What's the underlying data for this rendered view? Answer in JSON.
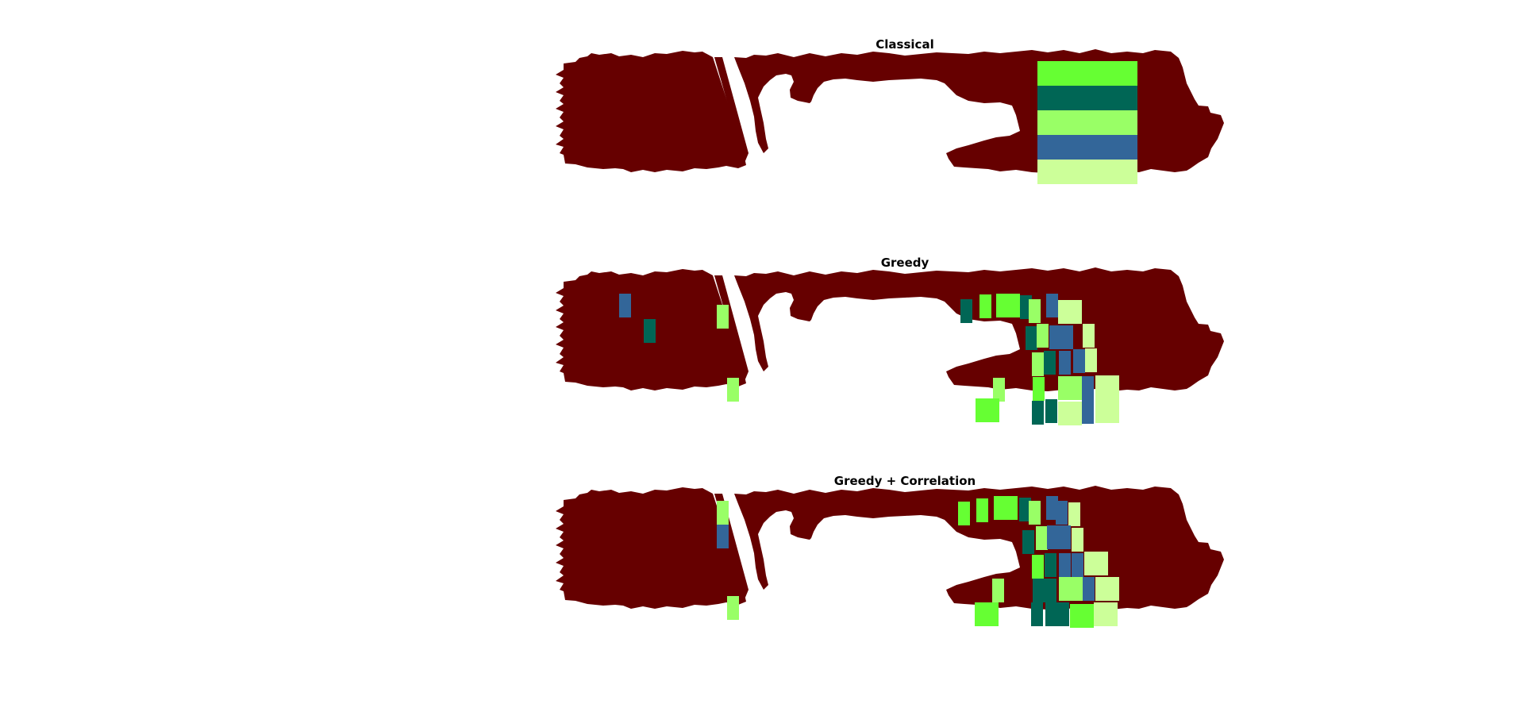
{
  "colors": {
    "field": "#660000",
    "bright_green": "#66ff33",
    "teal": "#006655",
    "light_green": "#99ff66",
    "steel_blue": "#336699",
    "pale_green": "#ccff99"
  },
  "panels": [
    {
      "title": "Classical",
      "wells": [
        {
          "x": 607,
          "y": 32,
          "w": 126,
          "h": 31,
          "color": "bright_green"
        },
        {
          "x": 607,
          "y": 63,
          "w": 126,
          "h": 31,
          "color": "teal"
        },
        {
          "x": 607,
          "y": 94,
          "w": 126,
          "h": 31,
          "color": "light_green"
        },
        {
          "x": 607,
          "y": 125,
          "w": 126,
          "h": 31,
          "color": "steel_blue"
        },
        {
          "x": 607,
          "y": 156,
          "w": 126,
          "h": 31,
          "color": "pale_green"
        }
      ]
    },
    {
      "title": "Greedy",
      "wells": [
        {
          "x": 80,
          "y": 50,
          "w": 15,
          "h": 30,
          "color": "steel_blue"
        },
        {
          "x": 111,
          "y": 82,
          "w": 15,
          "h": 30,
          "color": "teal"
        },
        {
          "x": 203,
          "y": 64,
          "w": 15,
          "h": 30,
          "color": "light_green"
        },
        {
          "x": 216,
          "y": 156,
          "w": 15,
          "h": 30,
          "color": "light_green"
        },
        {
          "x": 510,
          "y": 57,
          "w": 15,
          "h": 30,
          "color": "teal"
        },
        {
          "x": 534,
          "y": 51,
          "w": 15,
          "h": 30,
          "color": "bright_green"
        },
        {
          "x": 555,
          "y": 50,
          "w": 30,
          "h": 30,
          "color": "bright_green"
        },
        {
          "x": 585,
          "y": 52,
          "w": 15,
          "h": 30,
          "color": "teal"
        },
        {
          "x": 596,
          "y": 57,
          "w": 15,
          "h": 30,
          "color": "light_green"
        },
        {
          "x": 618,
          "y": 50,
          "w": 15,
          "h": 30,
          "color": "steel_blue"
        },
        {
          "x": 633,
          "y": 58,
          "w": 30,
          "h": 30,
          "color": "pale_green"
        },
        {
          "x": 592,
          "y": 91,
          "w": 15,
          "h": 30,
          "color": "teal"
        },
        {
          "x": 606,
          "y": 88,
          "w": 15,
          "h": 30,
          "color": "light_green"
        },
        {
          "x": 622,
          "y": 90,
          "w": 30,
          "h": 30,
          "color": "steel_blue"
        },
        {
          "x": 664,
          "y": 88,
          "w": 15,
          "h": 30,
          "color": "pale_green"
        },
        {
          "x": 600,
          "y": 124,
          "w": 15,
          "h": 30,
          "color": "light_green"
        },
        {
          "x": 615,
          "y": 122,
          "w": 15,
          "h": 30,
          "color": "teal"
        },
        {
          "x": 634,
          "y": 122,
          "w": 15,
          "h": 30,
          "color": "steel_blue"
        },
        {
          "x": 652,
          "y": 120,
          "w": 15,
          "h": 30,
          "color": "steel_blue"
        },
        {
          "x": 667,
          "y": 119,
          "w": 15,
          "h": 30,
          "color": "pale_green"
        },
        {
          "x": 551,
          "y": 156,
          "w": 15,
          "h": 30,
          "color": "light_green"
        },
        {
          "x": 529,
          "y": 182,
          "w": 30,
          "h": 30,
          "color": "bright_green"
        },
        {
          "x": 601,
          "y": 155,
          "w": 15,
          "h": 30,
          "color": "bright_green"
        },
        {
          "x": 600,
          "y": 185,
          "w": 15,
          "h": 30,
          "color": "teal"
        },
        {
          "x": 617,
          "y": 183,
          "w": 15,
          "h": 30,
          "color": "teal"
        },
        {
          "x": 633,
          "y": 154,
          "w": 30,
          "h": 30,
          "color": "light_green"
        },
        {
          "x": 633,
          "y": 186,
          "w": 30,
          "h": 30,
          "color": "pale_green"
        },
        {
          "x": 663,
          "y": 154,
          "w": 15,
          "h": 30,
          "color": "steel_blue"
        },
        {
          "x": 663,
          "y": 184,
          "w": 15,
          "h": 30,
          "color": "steel_blue"
        },
        {
          "x": 680,
          "y": 153,
          "w": 30,
          "h": 30,
          "color": "pale_green"
        },
        {
          "x": 680,
          "y": 183,
          "w": 30,
          "h": 30,
          "color": "pale_green"
        }
      ]
    },
    {
      "title": "Greedy + Correlation",
      "wells": [
        {
          "x": 203,
          "y": 36,
          "w": 15,
          "h": 30,
          "color": "light_green"
        },
        {
          "x": 203,
          "y": 66,
          "w": 15,
          "h": 30,
          "color": "steel_blue"
        },
        {
          "x": 216,
          "y": 156,
          "w": 15,
          "h": 30,
          "color": "light_green"
        },
        {
          "x": 507,
          "y": 37,
          "w": 15,
          "h": 30,
          "color": "bright_green"
        },
        {
          "x": 530,
          "y": 33,
          "w": 15,
          "h": 30,
          "color": "bright_green"
        },
        {
          "x": 552,
          "y": 30,
          "w": 30,
          "h": 30,
          "color": "bright_green"
        },
        {
          "x": 584,
          "y": 32,
          "w": 15,
          "h": 30,
          "color": "teal"
        },
        {
          "x": 596,
          "y": 36,
          "w": 15,
          "h": 30,
          "color": "light_green"
        },
        {
          "x": 618,
          "y": 30,
          "w": 15,
          "h": 30,
          "color": "steel_blue"
        },
        {
          "x": 630,
          "y": 36,
          "w": 15,
          "h": 30,
          "color": "steel_blue"
        },
        {
          "x": 646,
          "y": 38,
          "w": 15,
          "h": 30,
          "color": "pale_green"
        },
        {
          "x": 588,
          "y": 73,
          "w": 15,
          "h": 30,
          "color": "teal"
        },
        {
          "x": 605,
          "y": 68,
          "w": 15,
          "h": 30,
          "color": "light_green"
        },
        {
          "x": 619,
          "y": 67,
          "w": 30,
          "h": 30,
          "color": "steel_blue"
        },
        {
          "x": 650,
          "y": 70,
          "w": 15,
          "h": 30,
          "color": "pale_green"
        },
        {
          "x": 600,
          "y": 104,
          "w": 15,
          "h": 30,
          "color": "bright_green"
        },
        {
          "x": 616,
          "y": 102,
          "w": 15,
          "h": 30,
          "color": "teal"
        },
        {
          "x": 634,
          "y": 102,
          "w": 15,
          "h": 30,
          "color": "steel_blue"
        },
        {
          "x": 650,
          "y": 102,
          "w": 15,
          "h": 30,
          "color": "steel_blue"
        },
        {
          "x": 666,
          "y": 100,
          "w": 30,
          "h": 30,
          "color": "pale_green"
        },
        {
          "x": 550,
          "y": 134,
          "w": 15,
          "h": 30,
          "color": "light_green"
        },
        {
          "x": 528,
          "y": 164,
          "w": 30,
          "h": 30,
          "color": "bright_green"
        },
        {
          "x": 601,
          "y": 134,
          "w": 30,
          "h": 30,
          "color": "teal"
        },
        {
          "x": 599,
          "y": 164,
          "w": 15,
          "h": 30,
          "color": "teal"
        },
        {
          "x": 617,
          "y": 164,
          "w": 30,
          "h": 30,
          "color": "teal"
        },
        {
          "x": 634,
          "y": 132,
          "w": 30,
          "h": 30,
          "color": "light_green"
        },
        {
          "x": 664,
          "y": 132,
          "w": 15,
          "h": 30,
          "color": "steel_blue"
        },
        {
          "x": 680,
          "y": 132,
          "w": 30,
          "h": 30,
          "color": "pale_green"
        },
        {
          "x": 648,
          "y": 166,
          "w": 30,
          "h": 30,
          "color": "bright_green"
        },
        {
          "x": 678,
          "y": 164,
          "w": 30,
          "h": 30,
          "color": "pale_green"
        }
      ]
    }
  ]
}
